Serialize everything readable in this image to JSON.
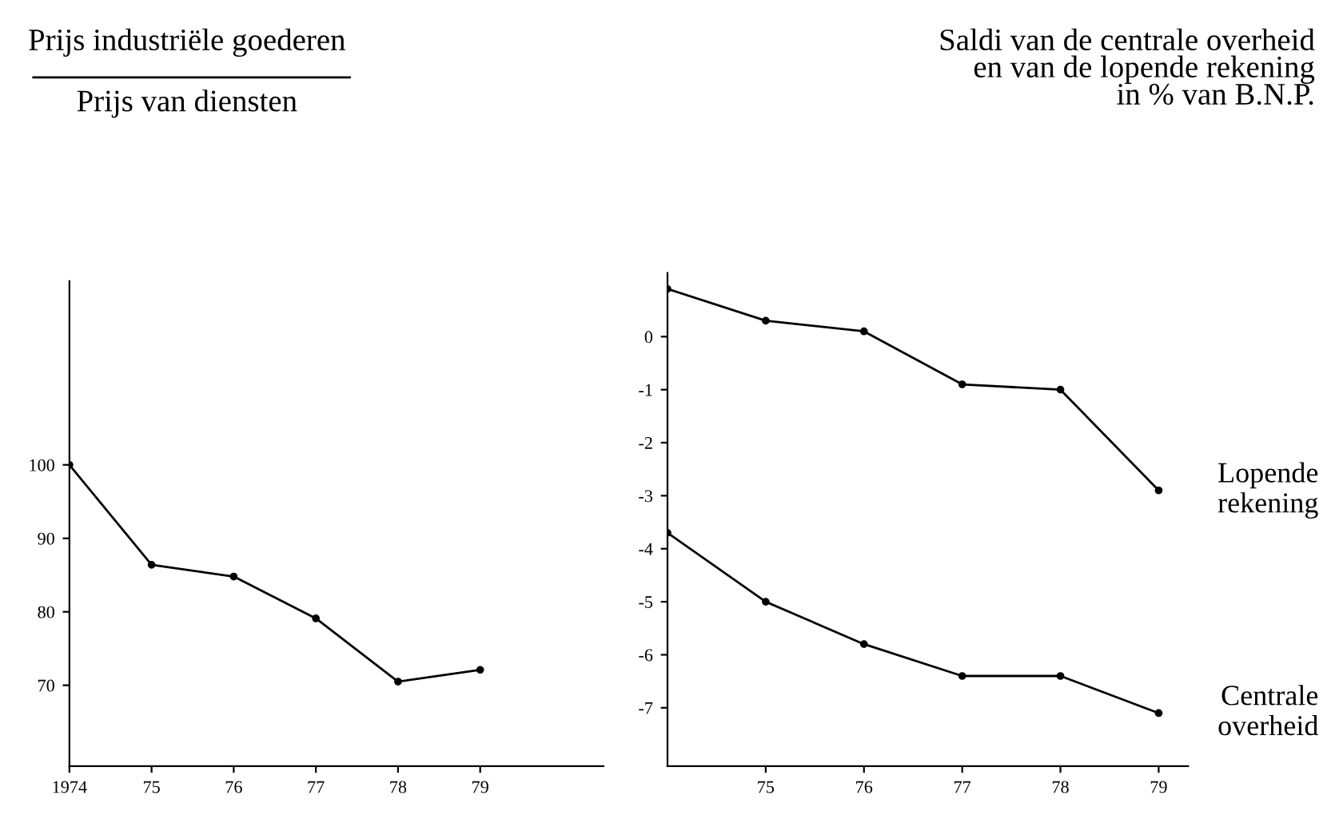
{
  "chart_data": [
    {
      "type": "line",
      "title": "Prijs industriële goederen",
      "subtitle": "Prijs van diensten",
      "x": [
        1974,
        1975,
        1976,
        1977,
        1978,
        1979
      ],
      "series": [
        {
          "color": "#000000",
          "values": [
            100,
            86.4,
            84.8,
            79.1,
            70.5,
            72.1
          ]
        }
      ],
      "xlim": [
        1974,
        1980.5
      ],
      "xticks": [
        1974,
        {
          "value": 1975,
          "label": "75"
        },
        {
          "value": 1976,
          "label": "76"
        },
        {
          "value": 1977,
          "label": "77"
        },
        {
          "value": 1978,
          "label": "78"
        },
        {
          "value": 1979,
          "label": "79"
        }
      ],
      "ylim": [
        59,
        125
      ],
      "yticks": [
        70,
        80,
        90,
        100
      ],
      "marker": "circle",
      "line_style": "solid",
      "grid": false
    },
    {
      "type": "line",
      "title": "Saldi van de centrale overheid\nen van de lopende rekening\nin % van B.N.P.",
      "x": [
        1974,
        1975,
        1976,
        1977,
        1978,
        1979
      ],
      "series": [
        {
          "name": "Lopende\nrekening",
          "color": "#000000",
          "values": [
            0.9,
            0.3,
            0.1,
            -0.9,
            -1.0,
            -2.9
          ]
        },
        {
          "name": "Centrale\noverheid",
          "color": "#000000",
          "values": [
            -3.7,
            -5.0,
            -5.8,
            -6.4,
            -6.4,
            -7.1
          ]
        }
      ],
      "xlim": [
        1974,
        1979.3
      ],
      "xticks": [
        {
          "value": 1975,
          "label": "75"
        },
        {
          "value": 1976,
          "label": "76"
        },
        {
          "value": 1977,
          "label": "77"
        },
        {
          "value": 1978,
          "label": "78"
        },
        {
          "value": 1979,
          "label": "79"
        }
      ],
      "ylim": [
        -8.1,
        1.2
      ],
      "yticks": [
        0,
        -1,
        -2,
        -3,
        -4,
        -5,
        -6,
        -7
      ],
      "marker": "circle",
      "line_style": "solid",
      "grid": false
    }
  ]
}
